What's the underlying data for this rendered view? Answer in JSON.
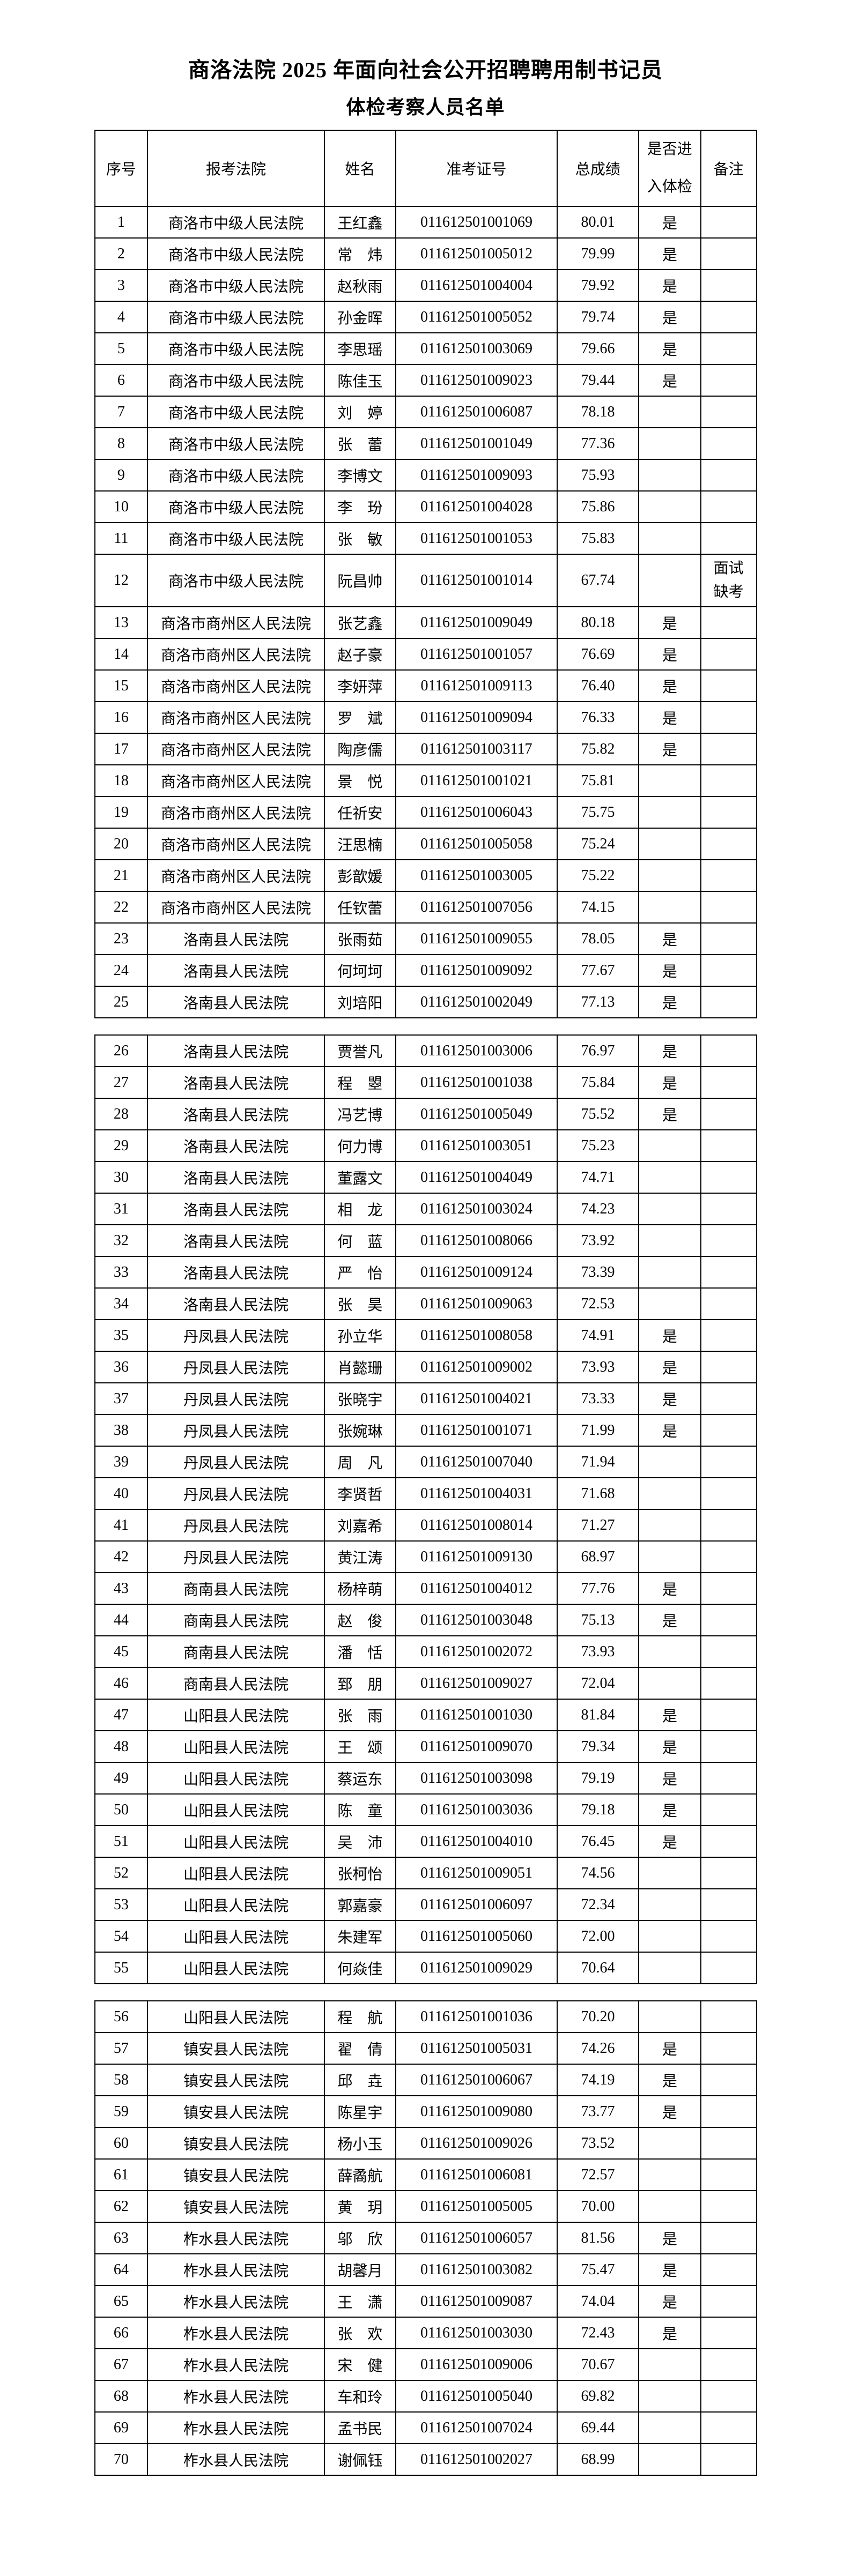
{
  "page": {
    "background": "#ffffff",
    "text_color": "#000000",
    "border_color": "#000000"
  },
  "title": "商洛法院 2025 年面向社会公开招聘聘用制书记员",
  "subtitle": "体检考察人员名单",
  "table": {
    "headers": {
      "seq": "序号",
      "court": "报考法院",
      "name": "姓名",
      "ticket": "准考证号",
      "score": "总成绩",
      "pass": "是否进入体检",
      "remark": "备注"
    },
    "column_widths_pct": [
      8.0,
      26.7,
      10.8,
      24.4,
      12.3,
      9.4,
      8.4
    ],
    "section_breaks_after": [
      25,
      55
    ],
    "rows": [
      [
        "1",
        "商洛市中级人民法院",
        "王红鑫",
        "011612501001069",
        "80.01",
        "是",
        ""
      ],
      [
        "2",
        "商洛市中级人民法院",
        "常　炜",
        "011612501005012",
        "79.99",
        "是",
        ""
      ],
      [
        "3",
        "商洛市中级人民法院",
        "赵秋雨",
        "011612501004004",
        "79.92",
        "是",
        ""
      ],
      [
        "4",
        "商洛市中级人民法院",
        "孙金晖",
        "011612501005052",
        "79.74",
        "是",
        ""
      ],
      [
        "5",
        "商洛市中级人民法院",
        "李思瑶",
        "011612501003069",
        "79.66",
        "是",
        ""
      ],
      [
        "6",
        "商洛市中级人民法院",
        "陈佳玉",
        "011612501009023",
        "79.44",
        "是",
        ""
      ],
      [
        "7",
        "商洛市中级人民法院",
        "刘　婷",
        "011612501006087",
        "78.18",
        "",
        ""
      ],
      [
        "8",
        "商洛市中级人民法院",
        "张　蕾",
        "011612501001049",
        "77.36",
        "",
        ""
      ],
      [
        "9",
        "商洛市中级人民法院",
        "李博文",
        "011612501009093",
        "75.93",
        "",
        ""
      ],
      [
        "10",
        "商洛市中级人民法院",
        "李　玢",
        "011612501004028",
        "75.86",
        "",
        ""
      ],
      [
        "11",
        "商洛市中级人民法院",
        "张　敏",
        "011612501001053",
        "75.83",
        "",
        ""
      ],
      [
        "12",
        "商洛市中级人民法院",
        "阮昌帅",
        "011612501001014",
        "67.74",
        "",
        "面试缺考"
      ],
      [
        "13",
        "商洛市商州区人民法院",
        "张艺鑫",
        "011612501009049",
        "80.18",
        "是",
        ""
      ],
      [
        "14",
        "商洛市商州区人民法院",
        "赵子豪",
        "011612501001057",
        "76.69",
        "是",
        ""
      ],
      [
        "15",
        "商洛市商州区人民法院",
        "李妍萍",
        "011612501009113",
        "76.40",
        "是",
        ""
      ],
      [
        "16",
        "商洛市商州区人民法院",
        "罗　斌",
        "011612501009094",
        "76.33",
        "是",
        ""
      ],
      [
        "17",
        "商洛市商州区人民法院",
        "陶彦儒",
        "011612501003117",
        "75.82",
        "是",
        ""
      ],
      [
        "18",
        "商洛市商州区人民法院",
        "景　悦",
        "011612501001021",
        "75.81",
        "",
        ""
      ],
      [
        "19",
        "商洛市商州区人民法院",
        "任祈安",
        "011612501006043",
        "75.75",
        "",
        ""
      ],
      [
        "20",
        "商洛市商州区人民法院",
        "汪思楠",
        "011612501005058",
        "75.24",
        "",
        ""
      ],
      [
        "21",
        "商洛市商州区人民法院",
        "彭歆媛",
        "011612501003005",
        "75.22",
        "",
        ""
      ],
      [
        "22",
        "商洛市商州区人民法院",
        "任钦蕾",
        "011612501007056",
        "74.15",
        "",
        ""
      ],
      [
        "23",
        "洛南县人民法院",
        "张雨茹",
        "011612501009055",
        "78.05",
        "是",
        ""
      ],
      [
        "24",
        "洛南县人民法院",
        "何坷坷",
        "011612501009092",
        "77.67",
        "是",
        ""
      ],
      [
        "25",
        "洛南县人民法院",
        "刘培阳",
        "011612501002049",
        "77.13",
        "是",
        ""
      ],
      [
        "26",
        "洛南县人民法院",
        "贾誉凡",
        "011612501003006",
        "76.97",
        "是",
        ""
      ],
      [
        "27",
        "洛南县人民法院",
        "程　曌",
        "011612501001038",
        "75.84",
        "是",
        ""
      ],
      [
        "28",
        "洛南县人民法院",
        "冯艺博",
        "011612501005049",
        "75.52",
        "是",
        ""
      ],
      [
        "29",
        "洛南县人民法院",
        "何力博",
        "011612501003051",
        "75.23",
        "",
        ""
      ],
      [
        "30",
        "洛南县人民法院",
        "董露文",
        "011612501004049",
        "74.71",
        "",
        ""
      ],
      [
        "31",
        "洛南县人民法院",
        "相　龙",
        "011612501003024",
        "74.23",
        "",
        ""
      ],
      [
        "32",
        "洛南县人民法院",
        "何　蓝",
        "011612501008066",
        "73.92",
        "",
        ""
      ],
      [
        "33",
        "洛南县人民法院",
        "严　怡",
        "011612501009124",
        "73.39",
        "",
        ""
      ],
      [
        "34",
        "洛南县人民法院",
        "张　昊",
        "011612501009063",
        "72.53",
        "",
        ""
      ],
      [
        "35",
        "丹凤县人民法院",
        "孙立华",
        "011612501008058",
        "74.91",
        "是",
        ""
      ],
      [
        "36",
        "丹凤县人民法院",
        "肖懿珊",
        "011612501009002",
        "73.93",
        "是",
        ""
      ],
      [
        "37",
        "丹凤县人民法院",
        "张晓宇",
        "011612501004021",
        "73.33",
        "是",
        ""
      ],
      [
        "38",
        "丹凤县人民法院",
        "张婉琳",
        "011612501001071",
        "71.99",
        "是",
        ""
      ],
      [
        "39",
        "丹凤县人民法院",
        "周　凡",
        "011612501007040",
        "71.94",
        "",
        ""
      ],
      [
        "40",
        "丹凤县人民法院",
        "李贤哲",
        "011612501004031",
        "71.68",
        "",
        ""
      ],
      [
        "41",
        "丹凤县人民法院",
        "刘嘉希",
        "011612501008014",
        "71.27",
        "",
        ""
      ],
      [
        "42",
        "丹凤县人民法院",
        "黄江涛",
        "011612501009130",
        "68.97",
        "",
        ""
      ],
      [
        "43",
        "商南县人民法院",
        "杨梓萌",
        "011612501004012",
        "77.76",
        "是",
        ""
      ],
      [
        "44",
        "商南县人民法院",
        "赵　俊",
        "011612501003048",
        "75.13",
        "是",
        ""
      ],
      [
        "45",
        "商南县人民法院",
        "潘　恬",
        "011612501002072",
        "73.93",
        "",
        ""
      ],
      [
        "46",
        "商南县人民法院",
        "郅　朋",
        "011612501009027",
        "72.04",
        "",
        ""
      ],
      [
        "47",
        "山阳县人民法院",
        "张　雨",
        "011612501001030",
        "81.84",
        "是",
        ""
      ],
      [
        "48",
        "山阳县人民法院",
        "王　颂",
        "011612501009070",
        "79.34",
        "是",
        ""
      ],
      [
        "49",
        "山阳县人民法院",
        "蔡运东",
        "011612501003098",
        "79.19",
        "是",
        ""
      ],
      [
        "50",
        "山阳县人民法院",
        "陈　童",
        "011612501003036",
        "79.18",
        "是",
        ""
      ],
      [
        "51",
        "山阳县人民法院",
        "吴　沛",
        "011612501004010",
        "76.45",
        "是",
        ""
      ],
      [
        "52",
        "山阳县人民法院",
        "张柯怡",
        "011612501009051",
        "74.56",
        "",
        ""
      ],
      [
        "53",
        "山阳县人民法院",
        "郭嘉豪",
        "011612501006097",
        "72.34",
        "",
        ""
      ],
      [
        "54",
        "山阳县人民法院",
        "朱建军",
        "011612501005060",
        "72.00",
        "",
        ""
      ],
      [
        "55",
        "山阳县人民法院",
        "何焱佳",
        "011612501009029",
        "70.64",
        "",
        ""
      ],
      [
        "56",
        "山阳县人民法院",
        "程　航",
        "011612501001036",
        "70.20",
        "",
        ""
      ],
      [
        "57",
        "镇安县人民法院",
        "翟　倩",
        "011612501005031",
        "74.26",
        "是",
        ""
      ],
      [
        "58",
        "镇安县人民法院",
        "邱　垚",
        "011612501006067",
        "74.19",
        "是",
        ""
      ],
      [
        "59",
        "镇安县人民法院",
        "陈星宇",
        "011612501009080",
        "73.77",
        "是",
        ""
      ],
      [
        "60",
        "镇安县人民法院",
        "杨小玉",
        "011612501009026",
        "73.52",
        "",
        ""
      ],
      [
        "61",
        "镇安县人民法院",
        "薛矞航",
        "011612501006081",
        "72.57",
        "",
        ""
      ],
      [
        "62",
        "镇安县人民法院",
        "黄　玥",
        "011612501005005",
        "70.00",
        "",
        ""
      ],
      [
        "63",
        "柞水县人民法院",
        "邬　欣",
        "011612501006057",
        "81.56",
        "是",
        ""
      ],
      [
        "64",
        "柞水县人民法院",
        "胡馨月",
        "011612501003082",
        "75.47",
        "是",
        ""
      ],
      [
        "65",
        "柞水县人民法院",
        "王　潇",
        "011612501009087",
        "74.04",
        "是",
        ""
      ],
      [
        "66",
        "柞水县人民法院",
        "张　欢",
        "011612501003030",
        "72.43",
        "是",
        ""
      ],
      [
        "67",
        "柞水县人民法院",
        "宋　健",
        "011612501009006",
        "70.67",
        "",
        ""
      ],
      [
        "68",
        "柞水县人民法院",
        "车和玲",
        "011612501005040",
        "69.82",
        "",
        ""
      ],
      [
        "69",
        "柞水县人民法院",
        "孟书民",
        "011612501007024",
        "69.44",
        "",
        ""
      ],
      [
        "70",
        "柞水县人民法院",
        "谢佩钰",
        "011612501002027",
        "68.99",
        "",
        ""
      ]
    ]
  }
}
